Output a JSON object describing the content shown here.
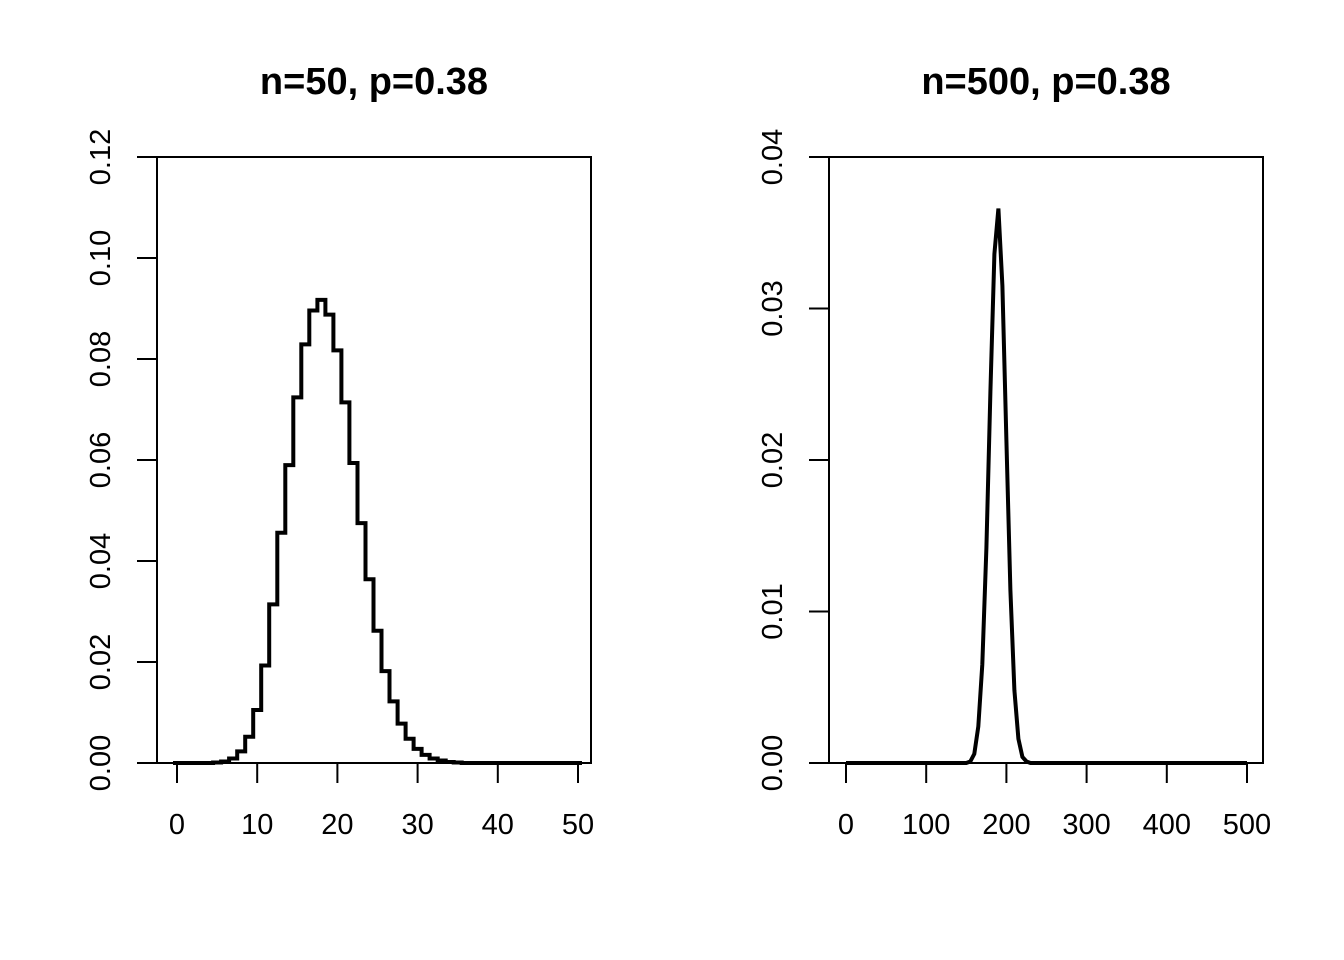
{
  "chart_data": [
    {
      "type": "line",
      "style": "step",
      "title": "n=50, p=0.38",
      "xlabel": "",
      "ylabel": "",
      "xlim": [
        0,
        50
      ],
      "ylim": [
        0,
        0.12
      ],
      "x_ticks": [
        "0",
        "10",
        "20",
        "30",
        "40",
        "50"
      ],
      "y_ticks": [
        "0.00",
        "0.02",
        "0.04",
        "0.06",
        "0.08",
        "0.10",
        "0.12"
      ],
      "grid": false,
      "series": [
        {
          "x": [
            0,
            1,
            2,
            3,
            4,
            5,
            6,
            7,
            8,
            9,
            10,
            11,
            12,
            13,
            14,
            15,
            16,
            17,
            18,
            19,
            20,
            21,
            22,
            23,
            24,
            25,
            26,
            27,
            28,
            29,
            30,
            31,
            32,
            33,
            34,
            35,
            36,
            37,
            38,
            39,
            40,
            41,
            42,
            43,
            44,
            45,
            46,
            47,
            48,
            49,
            50
          ],
          "y": [
            0,
            0,
            0,
            0,
            0,
            0.0001,
            0.0003,
            0.0009,
            0.0023,
            0.0052,
            0.0105,
            0.0193,
            0.0314,
            0.0456,
            0.059,
            0.0724,
            0.0829,
            0.0896,
            0.0917,
            0.0888,
            0.0817,
            0.0714,
            0.0594,
            0.0475,
            0.0364,
            0.0262,
            0.0182,
            0.0122,
            0.0078,
            0.0048,
            0.0028,
            0.0016,
            0.0009,
            0.0005,
            0.0002,
            0.0001,
            0,
            0,
            0,
            0,
            0,
            0,
            0,
            0,
            0,
            0,
            0,
            0,
            0,
            0,
            0
          ]
        }
      ]
    },
    {
      "type": "line",
      "title": "n=500, p=0.38",
      "xlabel": "",
      "ylabel": "",
      "xlim": [
        0,
        500
      ],
      "ylim": [
        0,
        0.04
      ],
      "x_ticks": [
        "0",
        "100",
        "200",
        "300",
        "400",
        "500"
      ],
      "y_ticks": [
        "0.00",
        "0.01",
        "0.02",
        "0.03",
        "0.04"
      ],
      "grid": false,
      "series": [
        {
          "x": [
            0,
            150,
            155,
            160,
            165,
            170,
            175,
            180,
            185,
            190,
            195,
            200,
            205,
            210,
            215,
            220,
            225,
            230,
            235,
            500
          ],
          "y": [
            0,
            0,
            0.0001,
            0.0006,
            0.0024,
            0.0065,
            0.0142,
            0.0245,
            0.0336,
            0.0366,
            0.0315,
            0.0213,
            0.0114,
            0.0048,
            0.0016,
            0.0004,
            0.0001,
            0,
            0,
            0
          ]
        }
      ]
    }
  ]
}
